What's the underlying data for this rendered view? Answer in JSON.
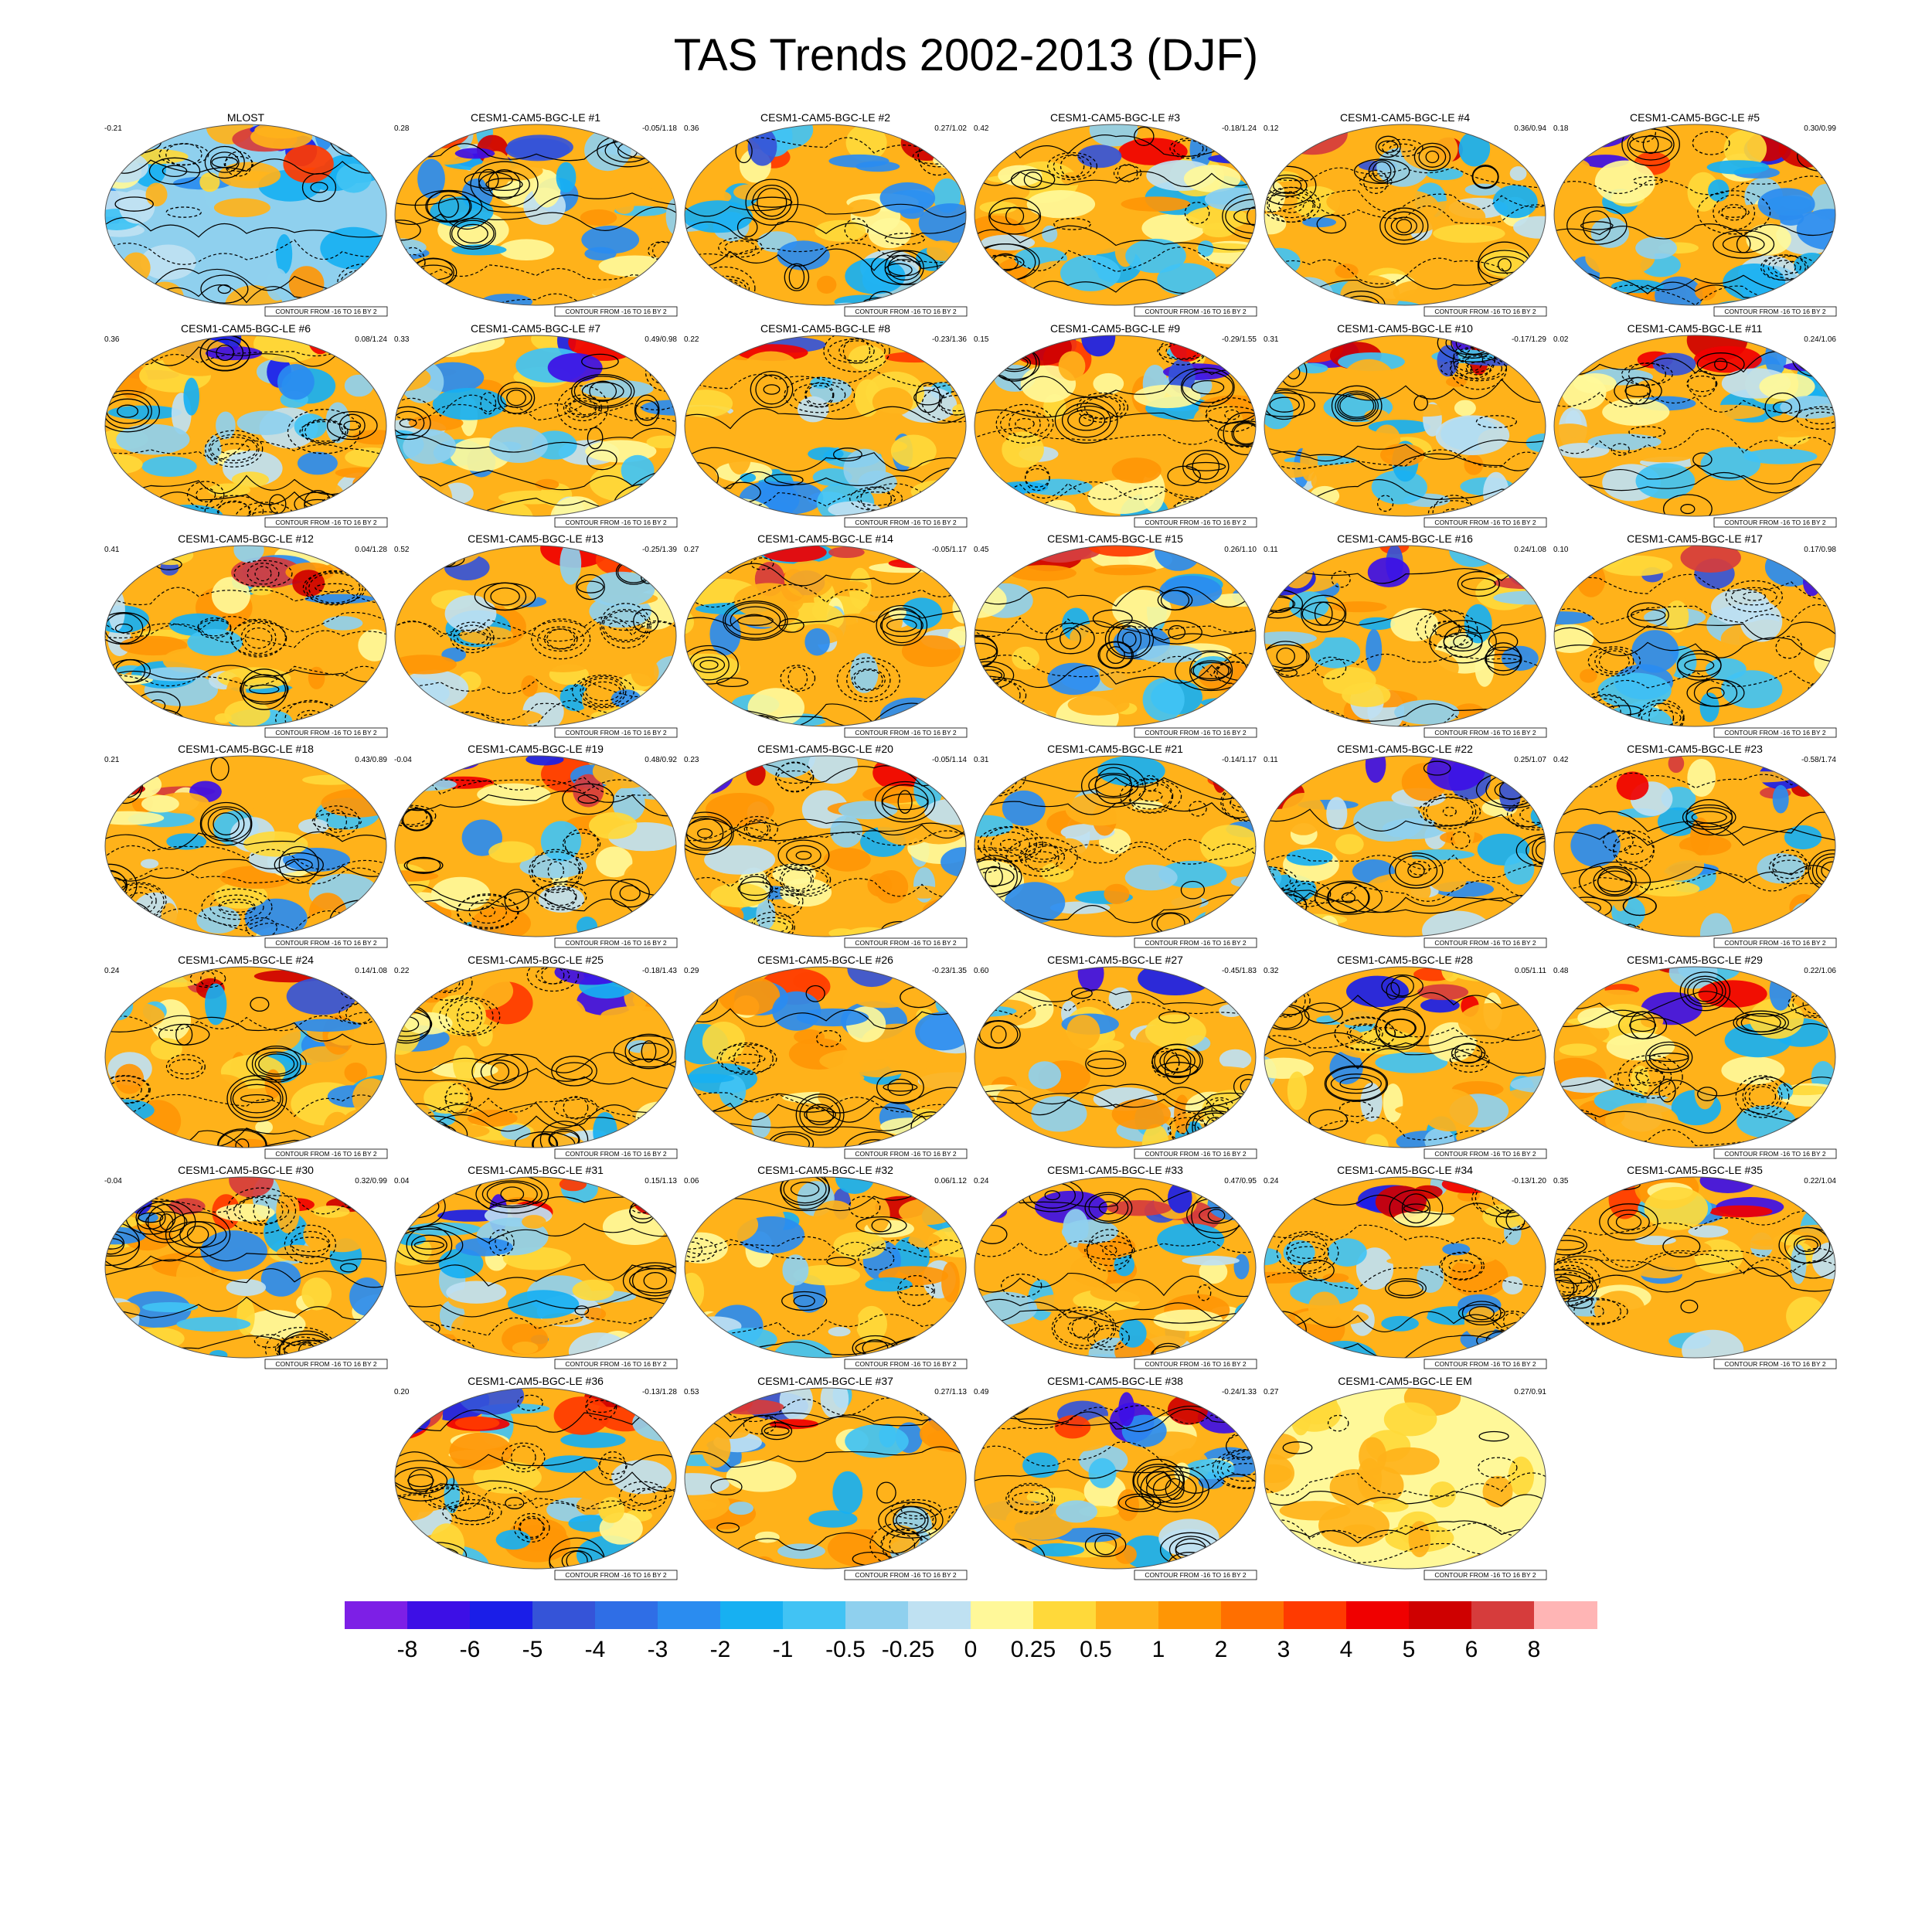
{
  "title": "TAS Trends 2002-2013 (DJF)",
  "contour_note": "CONTOUR FROM -16 TO 16 BY 2",
  "panels": [
    {
      "name": "MLOST",
      "left": "-0.21",
      "right": ""
    },
    {
      "name": "CESM1-CAM5-BGC-LE #1",
      "left": "0.28",
      "right": "-0.05/1.18"
    },
    {
      "name": "CESM1-CAM5-BGC-LE #2",
      "left": "0.36",
      "right": "0.27/1.02"
    },
    {
      "name": "CESM1-CAM5-BGC-LE #3",
      "left": "0.42",
      "right": "-0.18/1.24"
    },
    {
      "name": "CESM1-CAM5-BGC-LE #4",
      "left": "0.12",
      "right": "0.36/0.94"
    },
    {
      "name": "CESM1-CAM5-BGC-LE #5",
      "left": "0.18",
      "right": "0.30/0.99"
    },
    {
      "name": "CESM1-CAM5-BGC-LE #6",
      "left": "0.36",
      "right": "0.08/1.24"
    },
    {
      "name": "CESM1-CAM5-BGC-LE #7",
      "left": "0.33",
      "right": "0.49/0.98"
    },
    {
      "name": "CESM1-CAM5-BGC-LE #8",
      "left": "0.22",
      "right": "-0.23/1.36"
    },
    {
      "name": "CESM1-CAM5-BGC-LE #9",
      "left": "0.15",
      "right": "-0.29/1.55"
    },
    {
      "name": "CESM1-CAM5-BGC-LE #10",
      "left": "0.31",
      "right": "-0.17/1.29"
    },
    {
      "name": "CESM1-CAM5-BGC-LE #11",
      "left": "0.02",
      "right": "0.24/1.06"
    },
    {
      "name": "CESM1-CAM5-BGC-LE #12",
      "left": "0.41",
      "right": "0.04/1.28"
    },
    {
      "name": "CESM1-CAM5-BGC-LE #13",
      "left": "0.52",
      "right": "-0.25/1.39"
    },
    {
      "name": "CESM1-CAM5-BGC-LE #14",
      "left": "0.27",
      "right": "-0.05/1.17"
    },
    {
      "name": "CESM1-CAM5-BGC-LE #15",
      "left": "0.45",
      "right": "0.26/1.10"
    },
    {
      "name": "CESM1-CAM5-BGC-LE #16",
      "left": "0.11",
      "right": "0.24/1.08"
    },
    {
      "name": "CESM1-CAM5-BGC-LE #17",
      "left": "0.10",
      "right": "0.17/0.98"
    },
    {
      "name": "CESM1-CAM5-BGC-LE #18",
      "left": "0.21",
      "right": "0.43/0.89"
    },
    {
      "name": "CESM1-CAM5-BGC-LE #19",
      "left": "-0.04",
      "right": "0.48/0.92"
    },
    {
      "name": "CESM1-CAM5-BGC-LE #20",
      "left": "0.23",
      "right": "-0.05/1.14"
    },
    {
      "name": "CESM1-CAM5-BGC-LE #21",
      "left": "0.31",
      "right": "-0.14/1.17"
    },
    {
      "name": "CESM1-CAM5-BGC-LE #22",
      "left": "0.11",
      "right": "0.25/1.07"
    },
    {
      "name": "CESM1-CAM5-BGC-LE #23",
      "left": "0.42",
      "right": "-0.58/1.74"
    },
    {
      "name": "CESM1-CAM5-BGC-LE #24",
      "left": "0.24",
      "right": "0.14/1.08"
    },
    {
      "name": "CESM1-CAM5-BGC-LE #25",
      "left": "0.22",
      "right": "-0.18/1.43"
    },
    {
      "name": "CESM1-CAM5-BGC-LE #26",
      "left": "0.29",
      "right": "-0.23/1.35"
    },
    {
      "name": "CESM1-CAM5-BGC-LE #27",
      "left": "0.60",
      "right": "-0.45/1.83"
    },
    {
      "name": "CESM1-CAM5-BGC-LE #28",
      "left": "0.32",
      "right": "0.05/1.11"
    },
    {
      "name": "CESM1-CAM5-BGC-LE #29",
      "left": "0.48",
      "right": "0.22/1.06"
    },
    {
      "name": "CESM1-CAM5-BGC-LE #30",
      "left": "-0.04",
      "right": "0.32/0.99"
    },
    {
      "name": "CESM1-CAM5-BGC-LE #31",
      "left": "0.04",
      "right": "0.15/1.13"
    },
    {
      "name": "CESM1-CAM5-BGC-LE #32",
      "left": "0.06",
      "right": "0.06/1.12"
    },
    {
      "name": "CESM1-CAM5-BGC-LE #33",
      "left": "0.24",
      "right": "0.47/0.95"
    },
    {
      "name": "CESM1-CAM5-BGC-LE #34",
      "left": "0.24",
      "right": "-0.13/1.20"
    },
    {
      "name": "CESM1-CAM5-BGC-LE #35",
      "left": "0.35",
      "right": "0.22/1.04"
    },
    {
      "name": "CESM1-CAM5-BGC-LE #36",
      "left": "0.20",
      "right": "-0.13/1.28"
    },
    {
      "name": "CESM1-CAM5-BGC-LE #37",
      "left": "0.53",
      "right": "0.27/1.13"
    },
    {
      "name": "CESM1-CAM5-BGC-LE #38",
      "left": "0.49",
      "right": "-0.24/1.33"
    },
    {
      "name": "CESM1-CAM5-BGC-LE EM",
      "left": "0.27",
      "right": "0.27/0.91"
    }
  ],
  "colorbar": {
    "colors": [
      "#7d1fe6",
      "#3d0fe6",
      "#1a1ee8",
      "#3554d8",
      "#2f6ee6",
      "#2a8cf0",
      "#17b0f2",
      "#41c3f4",
      "#8fd0ee",
      "#bfe1f2",
      "#fff899",
      "#ffd93a",
      "#ffb21a",
      "#ff9605",
      "#ff6f00",
      "#ff3a00",
      "#f00000",
      "#cf0000",
      "#d63c3c",
      "#ffb5b5"
    ],
    "labels": [
      "-8",
      "-6",
      "-5",
      "-4",
      "-3",
      "-2",
      "-1",
      "-0.5",
      "-0.25",
      "0",
      "0.25",
      "0.5",
      "1",
      "2",
      "3",
      "4",
      "5",
      "6",
      "8"
    ]
  }
}
